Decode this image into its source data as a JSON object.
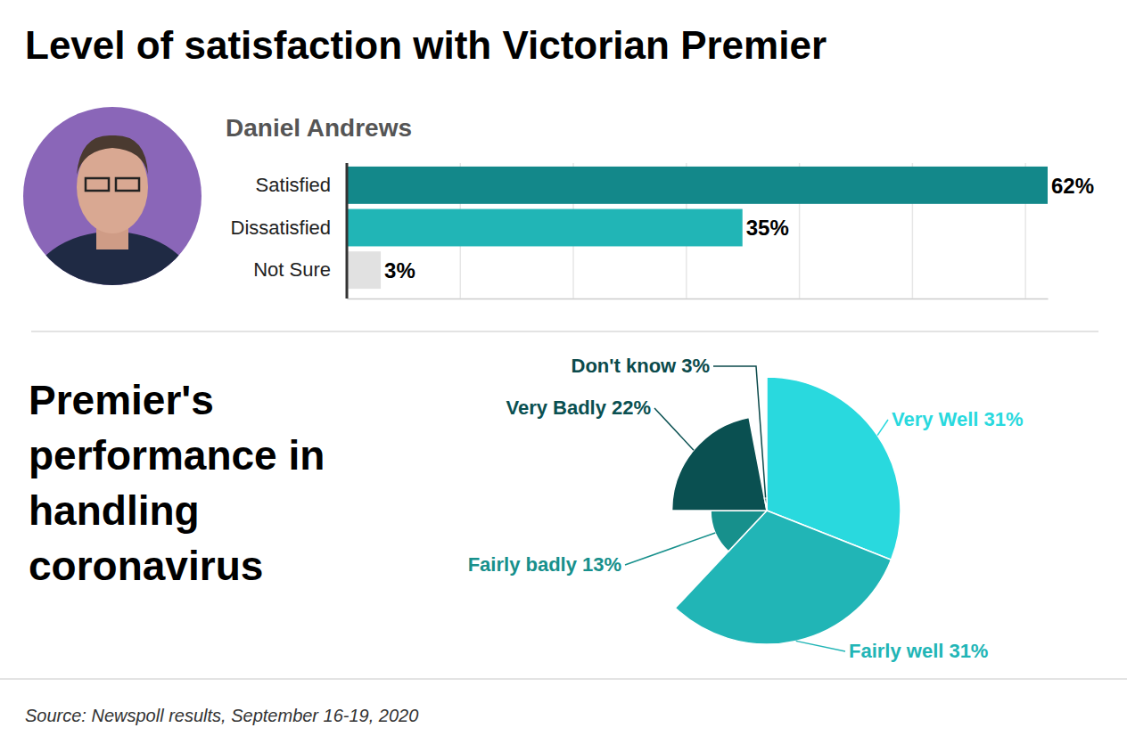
{
  "chart_data": [
    {
      "type": "bar",
      "orientation": "horizontal",
      "title": "Level of satisfaction with Victorian Premier",
      "subtitle": "Daniel Andrews",
      "categories": [
        "Satisfied",
        "Dissatisfied",
        "Not Sure"
      ],
      "values": [
        62,
        35,
        3
      ],
      "value_labels": [
        "62%",
        "35%",
        "3%"
      ],
      "colors": [
        "#13888a",
        "#21b5b6",
        "#e1e1e1"
      ],
      "xlim": [
        0,
        62
      ],
      "xticks": [
        0,
        10,
        20,
        30,
        40,
        50,
        60
      ],
      "grid": true,
      "tick_labels": "y",
      "data_labels": true
    },
    {
      "type": "pie",
      "title": "Premier's performance in handling coronavirus",
      "categories": [
        "Very Well",
        "Fairly well",
        "Fairly badly",
        "Very Badly",
        "Don't know"
      ],
      "values": [
        31,
        31,
        13,
        22,
        3
      ],
      "value_labels": [
        "31%",
        "31%",
        "13%",
        "22%",
        "3%"
      ],
      "colors": [
        "#29d9de",
        "#21b5b6",
        "#17908c",
        "#0a5051",
        "#0b4a4b"
      ],
      "data_labels": true
    }
  ],
  "source": "Source: Newspoll results, September 16-19, 2020"
}
